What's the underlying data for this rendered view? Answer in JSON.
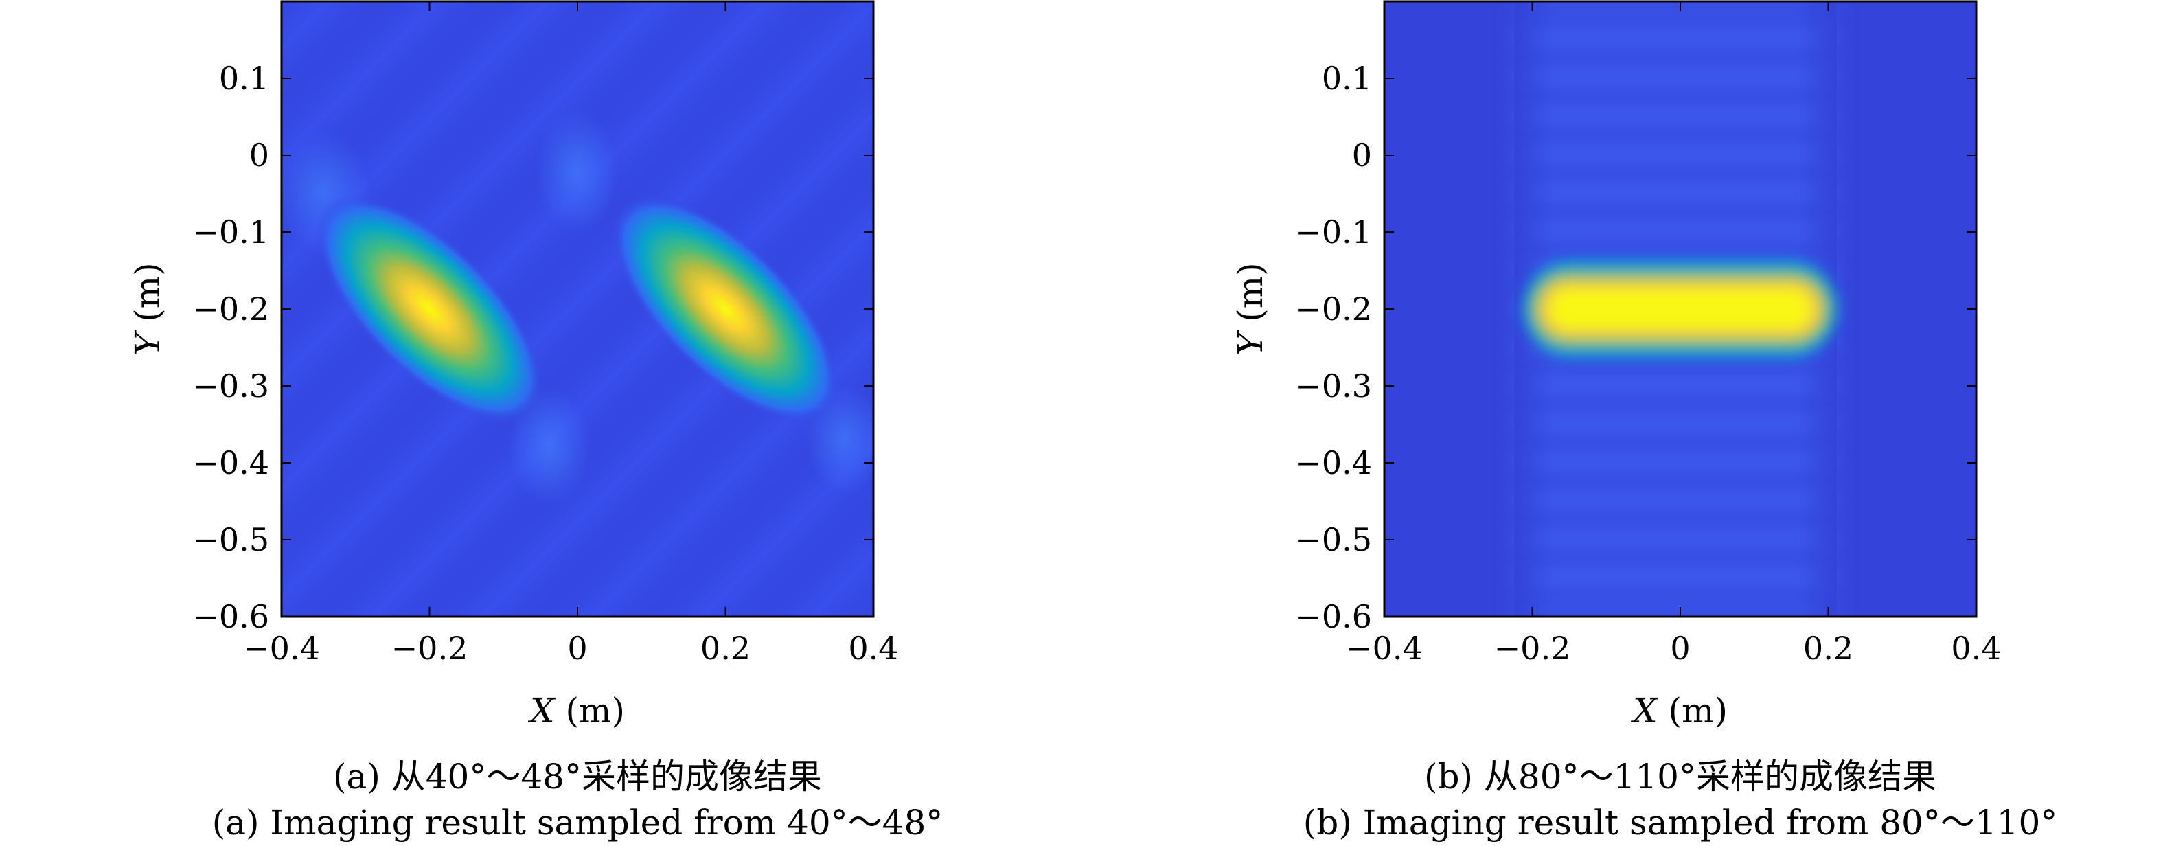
{
  "figure": {
    "colors": {
      "background": "#ffffff",
      "axis": "#000000"
    },
    "colormap": "parula",
    "panels": [
      {
        "chart_data": {
          "type": "heatmap",
          "title": "",
          "xlabel_var": "X",
          "xlabel_unit": "(m)",
          "ylabel_var": "Y",
          "ylabel_unit": "(m)",
          "xlim": [
            -0.4,
            0.4
          ],
          "ylim": [
            -0.6,
            0.2
          ],
          "xticks": [
            -0.4,
            -0.2,
            0,
            0.2,
            0.4
          ],
          "xtick_labels": [
            "−0.4",
            "−0.2",
            "0",
            "0.2",
            "0.4"
          ],
          "yticks": [
            0.1,
            0,
            -0.1,
            -0.2,
            -0.3,
            -0.4,
            -0.5,
            -0.6
          ],
          "ytick_labels": [
            "0.1",
            "0",
            "−0.1",
            "−0.2",
            "−0.3",
            "−0.4",
            "−0.5",
            "−0.6"
          ],
          "grid": false,
          "legend": "none",
          "colorbar": false,
          "value_range": [
            0,
            1
          ],
          "pattern": "two-oblique-targets",
          "targets": [
            {
              "x": -0.2,
              "y": -0.2,
              "peak": 1.0
            },
            {
              "x": 0.2,
              "y": -0.2,
              "peak": 1.0
            }
          ],
          "sidelobe_orientation": "diagonal"
        },
        "caption_zh": "(a) 从40°～48°采样的成像结果",
        "caption_en": "(a) Imaging result sampled from 40°～48°"
      },
      {
        "chart_data": {
          "type": "heatmap",
          "title": "",
          "xlabel_var": "X",
          "xlabel_unit": "(m)",
          "ylabel_var": "Y",
          "ylabel_unit": "(m)",
          "xlim": [
            -0.4,
            0.4
          ],
          "ylim": [
            -0.6,
            0.2
          ],
          "xticks": [
            -0.4,
            -0.2,
            0,
            0.2,
            0.4
          ],
          "xtick_labels": [
            "−0.4",
            "−0.2",
            "0",
            "0.2",
            "0.4"
          ],
          "yticks": [
            0.1,
            0,
            -0.1,
            -0.2,
            -0.3,
            -0.4,
            -0.5,
            -0.6
          ],
          "ytick_labels": [
            "0.1",
            "0",
            "−0.1",
            "−0.2",
            "−0.3",
            "−0.4",
            "−0.5",
            "−0.6"
          ],
          "grid": false,
          "legend": "none",
          "colorbar": false,
          "value_range": [
            0,
            1
          ],
          "pattern": "horizontal-bar-target",
          "targets": [
            {
              "x_from": -0.2,
              "x_to": 0.2,
              "y": -0.2,
              "peak": 1.0
            }
          ],
          "sidelobe_orientation": "horizontal"
        },
        "caption_zh": "(b) 从80°～110°采样的成像结果",
        "caption_en": "(b) Imaging result sampled from 80°～110°"
      }
    ]
  }
}
